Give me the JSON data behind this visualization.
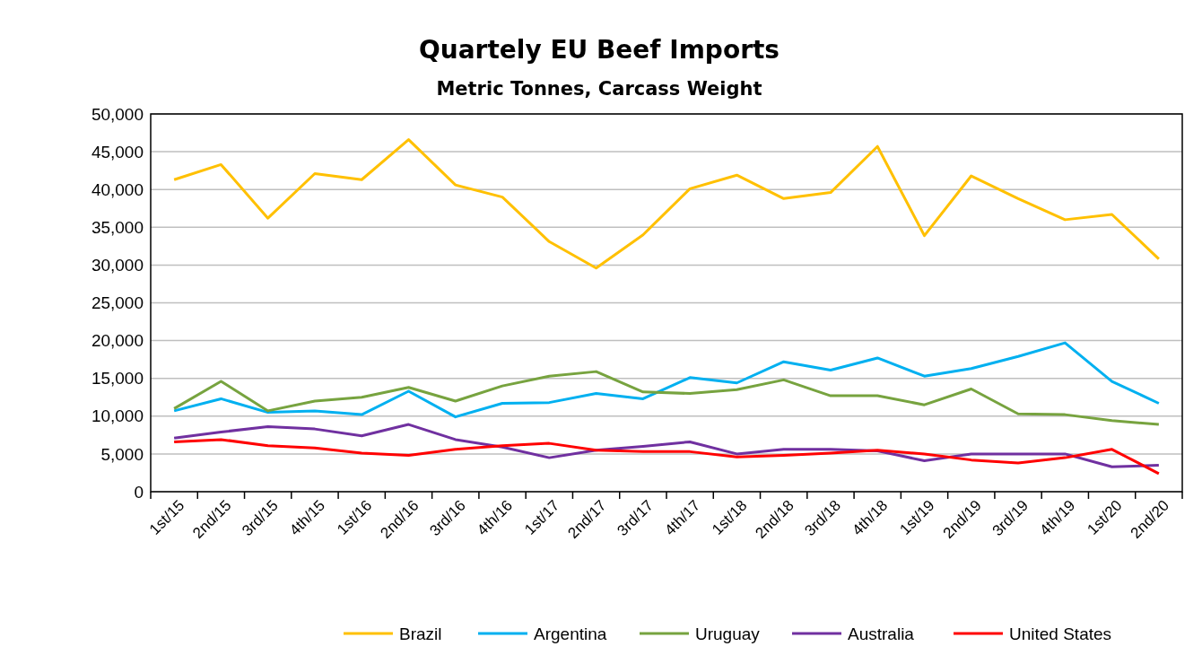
{
  "chart_data": {
    "type": "line",
    "title": "Quartely EU Beef Imports",
    "subtitle": "Metric Tonnes, Carcass Weight",
    "categories": [
      "1st/15",
      "2nd/15",
      "3rd/15",
      "4th/15",
      "1st/16",
      "2nd/16",
      "3rd/16",
      "4th/16",
      "1st/17",
      "2nd/17",
      "3rd/17",
      "4th/17",
      "1st/18",
      "2nd/18",
      "3rd/18",
      "4th/18",
      "1st/19",
      "2nd/19",
      "3rd/19",
      "4th/19",
      "1st/20",
      "2nd/20"
    ],
    "series": [
      {
        "name": "Brazil",
        "color": "#ffc000",
        "values": [
          41300,
          43300,
          36200,
          42100,
          41300,
          46600,
          40600,
          39000,
          33100,
          29600,
          34000,
          40100,
          41900,
          38800,
          39600,
          45700,
          33900,
          41800,
          38800,
          36000,
          36700,
          30800
        ]
      },
      {
        "name": "Argentina",
        "color": "#00b0f0",
        "values": [
          10700,
          12300,
          10500,
          10700,
          10200,
          13300,
          9900,
          11700,
          11800,
          13000,
          12300,
          15100,
          14400,
          17200,
          16100,
          17700,
          15300,
          16300,
          17900,
          19700,
          14600,
          11700
        ]
      },
      {
        "name": "Uruguay",
        "color": "#77a33f",
        "values": [
          11000,
          14600,
          10700,
          12000,
          12500,
          13800,
          12000,
          14000,
          15300,
          15900,
          13200,
          13000,
          13500,
          14800,
          12700,
          12700,
          11500,
          13600,
          10300,
          10200,
          9400,
          8900
        ]
      },
      {
        "name": "Australia",
        "color": "#7030a0",
        "values": [
          7100,
          7900,
          8600,
          8300,
          7400,
          8900,
          6900,
          5900,
          4500,
          5500,
          6000,
          6600,
          5000,
          5600,
          5600,
          5400,
          4100,
          5000,
          5000,
          5000,
          3300,
          3500
        ]
      },
      {
        "name": "United States",
        "color": "#ff0000",
        "values": [
          6600,
          6900,
          6100,
          5800,
          5100,
          4800,
          5600,
          6100,
          6400,
          5500,
          5300,
          5300,
          4600,
          4800,
          5100,
          5500,
          5000,
          4200,
          3800,
          4500,
          5600,
          2400
        ]
      }
    ],
    "ylim": [
      0,
      50000
    ],
    "yticks": [
      {
        "value": 0,
        "label": "0"
      },
      {
        "value": 5000,
        "label": "5,000"
      },
      {
        "value": 10000,
        "label": "10,000"
      },
      {
        "value": 15000,
        "label": "15,000"
      },
      {
        "value": 20000,
        "label": "20,000"
      },
      {
        "value": 25000,
        "label": "25,000"
      },
      {
        "value": 30000,
        "label": "30,000"
      },
      {
        "value": 35000,
        "label": "35,000"
      },
      {
        "value": 40000,
        "label": "40,000"
      },
      {
        "value": 45000,
        "label": "45,000"
      },
      {
        "value": 50000,
        "label": "50,000"
      }
    ],
    "grid": "y",
    "legend": "bottom",
    "marker": "none",
    "line_style": "solid"
  }
}
